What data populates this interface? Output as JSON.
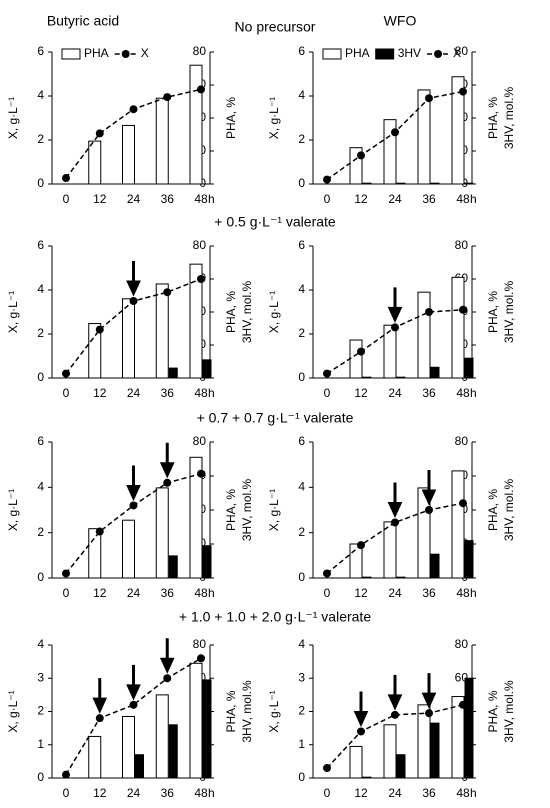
{
  "column_titles": [
    "Butyric acid",
    "WFO"
  ],
  "row_titles": [
    "No precursor",
    "+ 0.5 g·L⁻¹ valerate",
    "+ 0.7 + 0.7 g·L⁻¹ valerate",
    "+ 1.0 + 1.0 + 2.0 g·L⁻¹ valerate"
  ],
  "chart_data": [
    {
      "type": "bar",
      "categories": [
        "0",
        "12",
        "24",
        "36",
        "48"
      ],
      "x_unit": "h",
      "ylabel": "X, g·L⁻¹",
      "y2label": [
        "PHA, %"
      ],
      "ylim": [
        0,
        6
      ],
      "yticks": [
        0,
        2,
        4,
        6
      ],
      "y2lim": [
        0,
        80
      ],
      "y2ticks": [
        0,
        20,
        40,
        60,
        80
      ],
      "legend": "top",
      "additions_h": [],
      "series": [
        {
          "name": "PHA",
          "mark": "bar",
          "axis": "y2",
          "color": "#ffffff",
          "values": [
            null,
            26,
            35.5,
            52,
            72
          ]
        },
        {
          "name": "X",
          "mark": "line",
          "color": "#000000",
          "values": [
            0.27,
            2.3,
            3.4,
            3.95,
            4.3
          ]
        }
      ]
    },
    {
      "type": "bar",
      "categories": [
        "0",
        "12",
        "24",
        "36",
        "48"
      ],
      "x_unit": "h",
      "ylabel": "X, g·L⁻¹",
      "y2label": [
        "PHA, %",
        "3HV, mol.%"
      ],
      "ylim": [
        0,
        6
      ],
      "yticks": [
        0,
        2,
        4,
        6
      ],
      "y2lim": [
        0,
        80
      ],
      "y2ticks": [
        0,
        20,
        40,
        60,
        80
      ],
      "legend": "top",
      "additions_h": [],
      "series": [
        {
          "name": "PHA",
          "mark": "bar",
          "axis": "y2",
          "color": "#ffffff",
          "values": [
            null,
            22,
            39,
            57,
            65
          ]
        },
        {
          "name": "3HV",
          "mark": "bar",
          "axis": "y2",
          "color": "#000000",
          "values": [
            null,
            0.5,
            0.5,
            0.5,
            0.5
          ]
        },
        {
          "name": "X",
          "mark": "line",
          "color": "#000000",
          "values": [
            0.2,
            1.3,
            2.35,
            3.9,
            4.2
          ]
        }
      ]
    },
    {
      "type": "bar",
      "categories": [
        "0",
        "12",
        "24",
        "36",
        "48"
      ],
      "x_unit": "h",
      "ylabel": "X, g·L⁻¹",
      "y2label": [
        "PHA, %",
        "3HV, mol.%"
      ],
      "ylim": [
        0,
        6
      ],
      "yticks": [
        0,
        2,
        4,
        6
      ],
      "y2lim": [
        0,
        80
      ],
      "y2ticks": [
        0,
        20,
        40,
        60,
        80
      ],
      "additions_h": [
        24
      ],
      "series": [
        {
          "name": "PHA",
          "mark": "bar",
          "axis": "y2",
          "color": "#ffffff",
          "values": [
            null,
            33,
            48,
            57,
            69
          ]
        },
        {
          "name": "3HV",
          "mark": "bar",
          "axis": "y2",
          "color": "#000000",
          "values": [
            null,
            null,
            null,
            6,
            11
          ]
        },
        {
          "name": "X",
          "mark": "line",
          "color": "#000000",
          "values": [
            0.2,
            2.2,
            3.5,
            3.9,
            4.5
          ]
        }
      ]
    },
    {
      "type": "bar",
      "categories": [
        "0",
        "12",
        "24",
        "36",
        "48"
      ],
      "x_unit": "h",
      "ylabel": "X, g·L⁻¹",
      "y2label": [
        "PHA, %",
        "3HV, mol.%"
      ],
      "ylim": [
        0,
        6
      ],
      "yticks": [
        0,
        2,
        4,
        6
      ],
      "y2lim": [
        0,
        80
      ],
      "y2ticks": [
        0,
        20,
        40,
        60,
        80
      ],
      "additions_h": [
        24
      ],
      "series": [
        {
          "name": "PHA",
          "mark": "bar",
          "axis": "y2",
          "color": "#ffffff",
          "values": [
            null,
            23,
            32,
            52,
            61
          ]
        },
        {
          "name": "3HV",
          "mark": "bar",
          "axis": "y2",
          "color": "#000000",
          "values": [
            null,
            0.5,
            0.5,
            6.5,
            12
          ]
        },
        {
          "name": "X",
          "mark": "line",
          "color": "#000000",
          "values": [
            0.2,
            1.2,
            2.3,
            3.0,
            3.1
          ]
        }
      ]
    },
    {
      "type": "bar",
      "categories": [
        "0",
        "12",
        "24",
        "36",
        "48"
      ],
      "x_unit": "h",
      "ylabel": "X, g·L⁻¹",
      "y2label": [
        "PHA, %",
        "3HV, mol.%"
      ],
      "ylim": [
        0,
        6
      ],
      "yticks": [
        0,
        2,
        4,
        6
      ],
      "y2lim": [
        0,
        80
      ],
      "y2ticks": [
        0,
        20,
        40,
        60,
        80
      ],
      "additions_h": [
        24,
        36
      ],
      "series": [
        {
          "name": "PHA",
          "mark": "bar",
          "axis": "y2",
          "color": "#ffffff",
          "values": [
            null,
            29,
            34,
            53,
            71
          ]
        },
        {
          "name": "3HV",
          "mark": "bar",
          "axis": "y2",
          "color": "#000000",
          "values": [
            null,
            null,
            null,
            13,
            19
          ]
        },
        {
          "name": "X",
          "mark": "line",
          "color": "#000000",
          "values": [
            0.2,
            2.05,
            3.2,
            4.2,
            4.6
          ]
        }
      ]
    },
    {
      "type": "bar",
      "categories": [
        "0",
        "12",
        "24",
        "36",
        "48"
      ],
      "x_unit": "h",
      "ylabel": "X, g·L⁻¹",
      "y2label": [
        "PHA, %",
        "3HV, mol.%"
      ],
      "ylim": [
        0,
        6
      ],
      "yticks": [
        0,
        2,
        4,
        6
      ],
      "y2lim": [
        0,
        80
      ],
      "y2ticks": [
        0,
        20,
        40,
        60,
        80
      ],
      "additions_h": [
        24,
        36
      ],
      "series": [
        {
          "name": "PHA",
          "mark": "bar",
          "axis": "y2",
          "color": "#ffffff",
          "values": [
            null,
            20,
            33,
            53,
            63
          ]
        },
        {
          "name": "3HV",
          "mark": "bar",
          "axis": "y2",
          "color": "#000000",
          "values": [
            null,
            0.5,
            0.5,
            14,
            22
          ]
        },
        {
          "name": "X",
          "mark": "line",
          "color": "#000000",
          "values": [
            0.2,
            1.45,
            2.45,
            3.0,
            3.3
          ]
        }
      ]
    },
    {
      "type": "bar",
      "categories": [
        "0",
        "12",
        "24",
        "36",
        "48"
      ],
      "x_unit": "h",
      "ylabel": "X, g·L⁻¹",
      "y2label": [
        "PHA, %",
        "3HV, mol.%"
      ],
      "ylim": [
        0,
        4
      ],
      "yticks": [
        0,
        1,
        2,
        3,
        4
      ],
      "y2lim": [
        0,
        80
      ],
      "y2ticks": [
        0,
        20,
        40,
        60,
        80
      ],
      "additions_h": [
        12,
        24,
        36
      ],
      "series": [
        {
          "name": "PHA",
          "mark": "bar",
          "axis": "y2",
          "color": "#ffffff",
          "values": [
            null,
            25,
            37,
            50,
            69
          ]
        },
        {
          "name": "3HV",
          "mark": "bar",
          "axis": "y2",
          "color": "#000000",
          "values": [
            null,
            null,
            14,
            32,
            59
          ]
        },
        {
          "name": "X",
          "mark": "line",
          "color": "#000000",
          "values": [
            0.1,
            1.8,
            2.2,
            3.0,
            3.6
          ]
        }
      ]
    },
    {
      "type": "bar",
      "categories": [
        "0",
        "12",
        "24",
        "36",
        "48"
      ],
      "x_unit": "h",
      "ylabel": "X, g·L⁻¹",
      "y2label": [
        "PHA, %",
        "3HV, mol.%"
      ],
      "ylim": [
        0,
        4
      ],
      "yticks": [
        0,
        1,
        2,
        3,
        4
      ],
      "y2lim": [
        0,
        80
      ],
      "y2ticks": [
        0,
        20,
        40,
        60,
        80
      ],
      "additions_h": [
        12,
        24,
        36
      ],
      "series": [
        {
          "name": "PHA",
          "mark": "bar",
          "axis": "y2",
          "color": "#ffffff",
          "values": [
            null,
            19,
            32,
            44,
            49
          ]
        },
        {
          "name": "3HV",
          "mark": "bar",
          "axis": "y2",
          "color": "#000000",
          "values": [
            null,
            0.5,
            14,
            33,
            60
          ]
        },
        {
          "name": "X",
          "mark": "line",
          "color": "#000000",
          "values": [
            0.3,
            1.4,
            1.9,
            1.95,
            2.2
          ]
        }
      ]
    }
  ]
}
